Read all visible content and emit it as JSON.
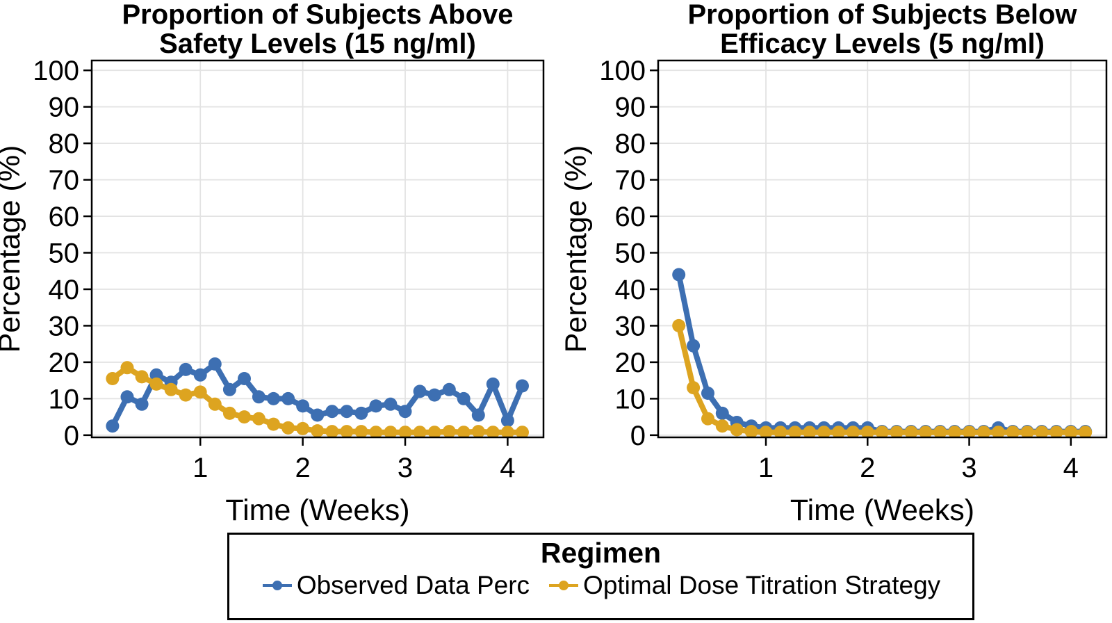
{
  "figure": {
    "background": "#ffffff",
    "colors": {
      "observed": "#3D6FB2",
      "optimal": "#DDA420",
      "grid": "#E3E3E3",
      "axis": "#000000"
    }
  },
  "chart_data": [
    {
      "type": "line",
      "title": "Proportion of Subjects Above Safety Levels (15 ng/ml)",
      "title_lines": [
        "Proportion of Subjects Above",
        "Safety Levels (15 ng/ml)"
      ],
      "xlabel": "Time (Weeks)",
      "ylabel": "Percentage (%)",
      "xlim": [
        0,
        4.35
      ],
      "ylim": [
        0,
        100
      ],
      "x_ticks": [
        1,
        2,
        3,
        4
      ],
      "y_ticks": [
        0,
        10,
        20,
        30,
        40,
        50,
        60,
        70,
        80,
        90,
        100
      ],
      "grid": true,
      "legend_position": "bottom",
      "x": [
        0.143,
        0.286,
        0.429,
        0.571,
        0.714,
        0.857,
        1.0,
        1.143,
        1.286,
        1.429,
        1.571,
        1.714,
        1.857,
        2.0,
        2.143,
        2.286,
        2.429,
        2.571,
        2.714,
        2.857,
        3.0,
        3.143,
        3.286,
        3.429,
        3.571,
        3.714,
        3.857,
        4.0,
        4.143
      ],
      "series": [
        {
          "name": "Observed Data Perc",
          "color": "#3D6FB2",
          "values": [
            2.5,
            10.5,
            8.5,
            16.5,
            14.5,
            18,
            16.5,
            19.5,
            12.5,
            15.5,
            10.5,
            10,
            10,
            8,
            5.5,
            6.5,
            6.5,
            6,
            8,
            8.5,
            6.5,
            12,
            11,
            12.5,
            10,
            5.5,
            14,
            4,
            13.5
          ]
        },
        {
          "name": "Optimal Dose Titration Strategy",
          "color": "#DDA420",
          "values": [
            15.5,
            18.5,
            16,
            14,
            12.5,
            11,
            11.8,
            8.5,
            6,
            5,
            4.5,
            3,
            2,
            1.8,
            1.2,
            1,
            1,
            1,
            0.8,
            0.8,
            0.8,
            0.8,
            0.8,
            1,
            0.8,
            1,
            0.8,
            0.8,
            0.8
          ]
        }
      ]
    },
    {
      "type": "line",
      "title": "Proportion of Subjects Below Efficacy Levels (5 ng/ml)",
      "title_lines": [
        "Proportion of Subjects Below",
        "Efficacy Levels (5 ng/ml)"
      ],
      "xlabel": "Time (Weeks)",
      "ylabel": "Percentage (%)",
      "xlim": [
        0,
        4.35
      ],
      "ylim": [
        0,
        100
      ],
      "x_ticks": [
        1,
        2,
        3,
        4
      ],
      "y_ticks": [
        0,
        10,
        20,
        30,
        40,
        50,
        60,
        70,
        80,
        90,
        100
      ],
      "grid": true,
      "legend_position": "bottom",
      "x": [
        0.143,
        0.286,
        0.429,
        0.571,
        0.714,
        0.857,
        1.0,
        1.143,
        1.286,
        1.429,
        1.571,
        1.714,
        1.857,
        2.0,
        2.143,
        2.286,
        2.429,
        2.571,
        2.714,
        2.857,
        3.0,
        3.143,
        3.286,
        3.429,
        3.571,
        3.714,
        3.857,
        4.0,
        4.143
      ],
      "series": [
        {
          "name": "Observed Data Perc",
          "color": "#3D6FB2",
          "values": [
            44,
            24.5,
            11.5,
            6,
            3.5,
            2.5,
            2,
            2,
            2,
            2,
            2,
            2,
            2,
            2,
            1,
            1,
            1,
            1,
            1,
            1,
            1,
            1,
            2,
            1,
            1,
            1,
            1,
            1,
            1
          ]
        },
        {
          "name": "Optimal Dose Titration Strategy",
          "color": "#DDA420",
          "values": [
            30,
            13,
            4.5,
            2.5,
            1.5,
            1,
            0.8,
            0.8,
            0.8,
            0.8,
            0.8,
            0.8,
            0.8,
            0.8,
            0.8,
            0.8,
            0.8,
            0.8,
            0.8,
            0.8,
            0.8,
            0.8,
            0.8,
            0.8,
            0.8,
            0.8,
            0.8,
            0.8,
            0.8
          ]
        }
      ]
    }
  ],
  "legend": {
    "title": "Regimen",
    "entries": [
      {
        "label": "Observed Data Perc",
        "color": "#3D6FB2"
      },
      {
        "label": "Optimal Dose Titration Strategy",
        "color": "#DDA420"
      }
    ]
  }
}
